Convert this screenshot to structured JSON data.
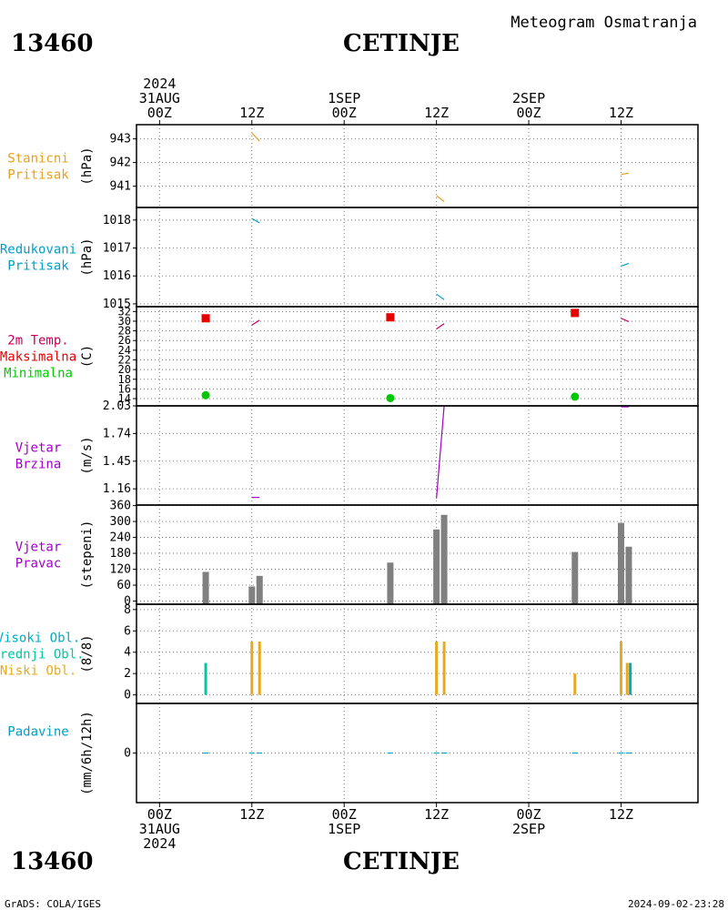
{
  "header": {
    "station_id": "13460",
    "station_name": "CETINJE",
    "subtitle": "Meteogram Osmatranja"
  },
  "footer": {
    "station_id": "13460",
    "station_name": "CETINJE",
    "credit": "GrADS: COLA/IGES",
    "timestamp": "2024-09-02-23:28"
  },
  "colors": {
    "stanicni": "#e6a020",
    "redukovani": "#00a0c8",
    "temp": "#c8005a",
    "maks": "#e60000",
    "mini": "#00c800",
    "vjetar": "#a000c8",
    "bar_gray": "#808080",
    "visoki": "#00aac8",
    "srednji": "#00c8a0",
    "niski": "#e6aa20",
    "padavine": "#00a0c8"
  },
  "chart_data": {
    "type": "meteogram",
    "time_axis": {
      "top_labels": [
        {
          "hour": 0,
          "lines": [
            "2024",
            "31AUG",
            "00Z"
          ]
        },
        {
          "hour": 12,
          "lines": [
            "12Z"
          ]
        },
        {
          "hour": 24,
          "lines": [
            "1SEP",
            "00Z"
          ]
        },
        {
          "hour": 36,
          "lines": [
            "12Z"
          ]
        },
        {
          "hour": 48,
          "lines": [
            "2SEP",
            "00Z"
          ]
        },
        {
          "hour": 60,
          "lines": [
            "12Z"
          ]
        }
      ],
      "bottom_labels": [
        {
          "hour": 0,
          "lines": [
            "00Z",
            "31AUG",
            "2024"
          ]
        },
        {
          "hour": 12,
          "lines": [
            "12Z"
          ]
        },
        {
          "hour": 24,
          "lines": [
            "00Z",
            "1SEP"
          ]
        },
        {
          "hour": 36,
          "lines": [
            "12Z"
          ]
        },
        {
          "hour": 48,
          "lines": [
            "00Z",
            "2SEP"
          ]
        },
        {
          "hour": 60,
          "lines": [
            "12Z"
          ]
        }
      ],
      "range_hours": [
        -3,
        70
      ]
    },
    "panels": [
      {
        "key": "stanicni",
        "labels": [
          "Stanicni",
          "Pritisak"
        ],
        "unit": "(hPa)",
        "ylim": [
          940.1,
          943.6
        ],
        "ticks": [
          {
            "v": 941,
            "t": "941"
          },
          {
            "v": 942,
            "t": "942"
          },
          {
            "v": 943,
            "t": "943"
          }
        ],
        "segments": [
          {
            "x": [
              12,
              13
            ],
            "y": [
              943.25,
              942.9
            ]
          },
          {
            "x": [
              36,
              37
            ],
            "y": [
              940.6,
              940.35
            ]
          },
          {
            "x": [
              60,
              61
            ],
            "y": [
              941.5,
              941.55
            ]
          }
        ]
      },
      {
        "key": "redukovani",
        "labels": [
          "Redukovani",
          "Pritisak"
        ],
        "unit": "(hPa)",
        "ylim": [
          1014.9,
          1018.45
        ],
        "ticks": [
          {
            "v": 1015,
            "t": "1015"
          },
          {
            "v": 1016,
            "t": "1016"
          },
          {
            "v": 1017,
            "t": "1017"
          },
          {
            "v": 1018,
            "t": "1018"
          }
        ],
        "segments": [
          {
            "x": [
              12,
              13
            ],
            "y": [
              1018.05,
              1017.9
            ]
          },
          {
            "x": [
              36,
              37
            ],
            "y": [
              1015.35,
              1015.15
            ]
          },
          {
            "x": [
              60,
              61
            ],
            "y": [
              1016.35,
              1016.45
            ]
          }
        ]
      },
      {
        "key": "temp",
        "labels": [
          "2m Temp.",
          "Maksimalna",
          "Minimalna"
        ],
        "unit": "(C)",
        "ylim": [
          12.5,
          33
        ],
        "ticks": [
          {
            "v": 14,
            "t": "14"
          },
          {
            "v": 16,
            "t": "16"
          },
          {
            "v": 18,
            "t": "18"
          },
          {
            "v": 20,
            "t": "20"
          },
          {
            "v": 22,
            "t": "22"
          },
          {
            "v": 24,
            "t": "24"
          },
          {
            "v": 26,
            "t": "26"
          },
          {
            "v": 28,
            "t": "28"
          },
          {
            "v": 30,
            "t": "30"
          },
          {
            "v": 32,
            "t": "32"
          }
        ],
        "segments": [
          {
            "x": [
              12,
              13
            ],
            "y": [
              29.2,
              30.2
            ]
          },
          {
            "x": [
              36,
              37
            ],
            "y": [
              28.4,
              29.5
            ]
          },
          {
            "x": [
              60,
              61
            ],
            "y": [
              30.6,
              29.9
            ]
          }
        ],
        "max": [
          {
            "x": 6,
            "y": 30.6
          },
          {
            "x": 30,
            "y": 30.8
          },
          {
            "x": 54,
            "y": 31.7
          }
        ],
        "min": [
          {
            "x": 6,
            "y": 14.7
          },
          {
            "x": 30,
            "y": 14.1
          },
          {
            "x": 54,
            "y": 14.4
          }
        ]
      },
      {
        "key": "vjetar",
        "labels": [
          "Vjetar",
          "Brzina"
        ],
        "unit": "(m/s)",
        "ylim": [
          0.99,
          2.03
        ],
        "ticks": [
          {
            "v": 1.16,
            "t": "1.16"
          },
          {
            "v": 1.45,
            "t": "1.45"
          },
          {
            "v": 1.74,
            "t": "1.74"
          },
          {
            "v": 2.03,
            "t": "2.03"
          }
        ],
        "segments": [
          {
            "x": [
              12,
              13
            ],
            "y": [
              1.07,
              1.07
            ]
          },
          {
            "x": [
              36,
              37
            ],
            "y": [
              1.06,
              2.03
            ]
          },
          {
            "x": [
              60,
              61
            ],
            "y": [
              2.02,
              2.02
            ]
          }
        ]
      },
      {
        "key": "pravac",
        "labels": [
          "Vjetar",
          "Pravac"
        ],
        "unit": "(stepeni)",
        "ylim": [
          -12,
          362
        ],
        "ticks": [
          {
            "v": 0,
            "t": "0"
          },
          {
            "v": 60,
            "t": "60"
          },
          {
            "v": 120,
            "t": "120"
          },
          {
            "v": 180,
            "t": "180"
          },
          {
            "v": 240,
            "t": "240"
          },
          {
            "v": 300,
            "t": "300"
          },
          {
            "v": 360,
            "t": "360"
          }
        ],
        "bars": [
          {
            "x": 6,
            "v": 110
          },
          {
            "x": 12,
            "v": 55
          },
          {
            "x": 13,
            "v": 95
          },
          {
            "x": 30,
            "v": 145
          },
          {
            "x": 36,
            "v": 270
          },
          {
            "x": 37,
            "v": 325
          },
          {
            "x": 54,
            "v": 185
          },
          {
            "x": 60,
            "v": 295
          },
          {
            "x": 61,
            "v": 205
          }
        ]
      },
      {
        "key": "oblaci",
        "labels": [
          "Visoki Obl.",
          "Srednji Obl.",
          "Niski Obl."
        ],
        "unit": "(8/8)",
        "ylim": [
          -0.8,
          8.5
        ],
        "ticks": [
          {
            "v": 0,
            "t": "0"
          },
          {
            "v": 2,
            "t": "2"
          },
          {
            "v": 4,
            "t": "4"
          },
          {
            "v": 6,
            "t": "6"
          },
          {
            "v": 8,
            "t": "8"
          }
        ],
        "bars": [
          {
            "x": 6,
            "v": 3,
            "c": "srednji"
          },
          {
            "x": 12,
            "v": 5,
            "c": "niski"
          },
          {
            "x": 13,
            "v": 5,
            "c": "niski"
          },
          {
            "x": 36,
            "v": 5,
            "c": "niski"
          },
          {
            "x": 37,
            "v": 5,
            "c": "niski"
          },
          {
            "x": 54,
            "v": 2,
            "c": "niski"
          },
          {
            "x": 60,
            "v": 5,
            "c": "niski"
          },
          {
            "x": 60.8,
            "v": 3,
            "c": "niski"
          },
          {
            "x": 61.2,
            "v": 3,
            "c": "visoki"
          }
        ]
      },
      {
        "key": "padavine",
        "labels": [
          "Padavine"
        ],
        "unit": "(mm/6h/12h)",
        "ylim": [
          -4,
          4
        ],
        "ticks": [
          {
            "v": 0,
            "t": "0"
          }
        ],
        "marks": [
          6,
          12,
          13,
          30,
          36,
          37,
          54,
          60,
          61
        ]
      }
    ]
  }
}
